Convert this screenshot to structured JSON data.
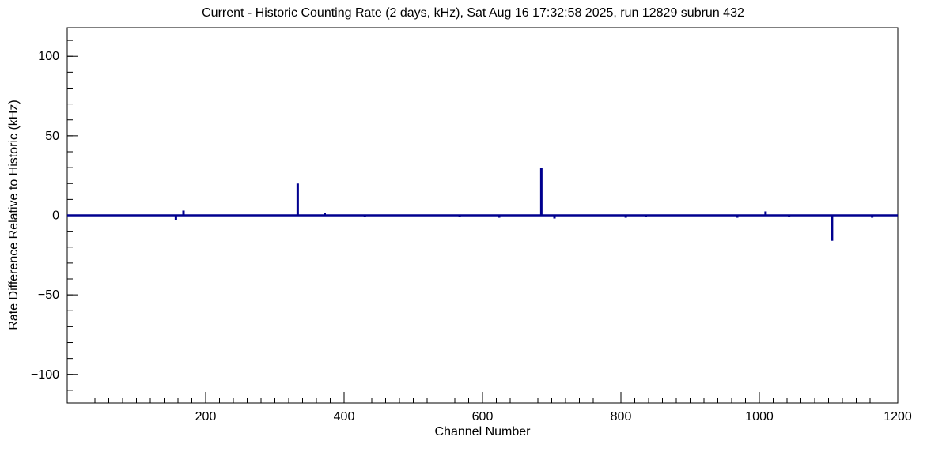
{
  "chart_data": {
    "type": "line",
    "title": "Current - Historic Counting Rate (2 days, kHz), Sat Aug 16 17:32:58 2025, run 12829 subrun 432",
    "xlabel": "Channel Number",
    "ylabel": "Rate Difference Relative to Historic (kHz)",
    "xlim": [
      0,
      1200
    ],
    "ylim": [
      -118,
      118
    ],
    "x_major_ticks": [
      200,
      400,
      600,
      800,
      1000,
      1200
    ],
    "x_minor_step": 20,
    "y_major_ticks": [
      {
        "value": -100,
        "label": "−100"
      },
      {
        "value": -50,
        "label": "−50"
      },
      {
        "value": 0,
        "label": "0"
      },
      {
        "value": 50,
        "label": "50"
      },
      {
        "value": 100,
        "label": "100"
      }
    ],
    "y_minor_step": 10,
    "grid": false,
    "legend": "none",
    "baseline": 0,
    "line_color": "#00008f",
    "axis_color": "#000000",
    "background": "#ffffff",
    "spikes": [
      {
        "channel": 157,
        "value": -3
      },
      {
        "channel": 168,
        "value": 3
      },
      {
        "channel": 333,
        "value": 20
      },
      {
        "channel": 372,
        "value": 1.5
      },
      {
        "channel": 430,
        "value": -1
      },
      {
        "channel": 567,
        "value": -1
      },
      {
        "channel": 624,
        "value": -1.5
      },
      {
        "channel": 685,
        "value": 30
      },
      {
        "channel": 704,
        "value": -2
      },
      {
        "channel": 807,
        "value": -1.5
      },
      {
        "channel": 836,
        "value": -1
      },
      {
        "channel": 968,
        "value": -1.5
      },
      {
        "channel": 1009,
        "value": 2.5
      },
      {
        "channel": 1043,
        "value": -1
      },
      {
        "channel": 1105,
        "value": -16
      },
      {
        "channel": 1163,
        "value": -1.5
      }
    ]
  }
}
